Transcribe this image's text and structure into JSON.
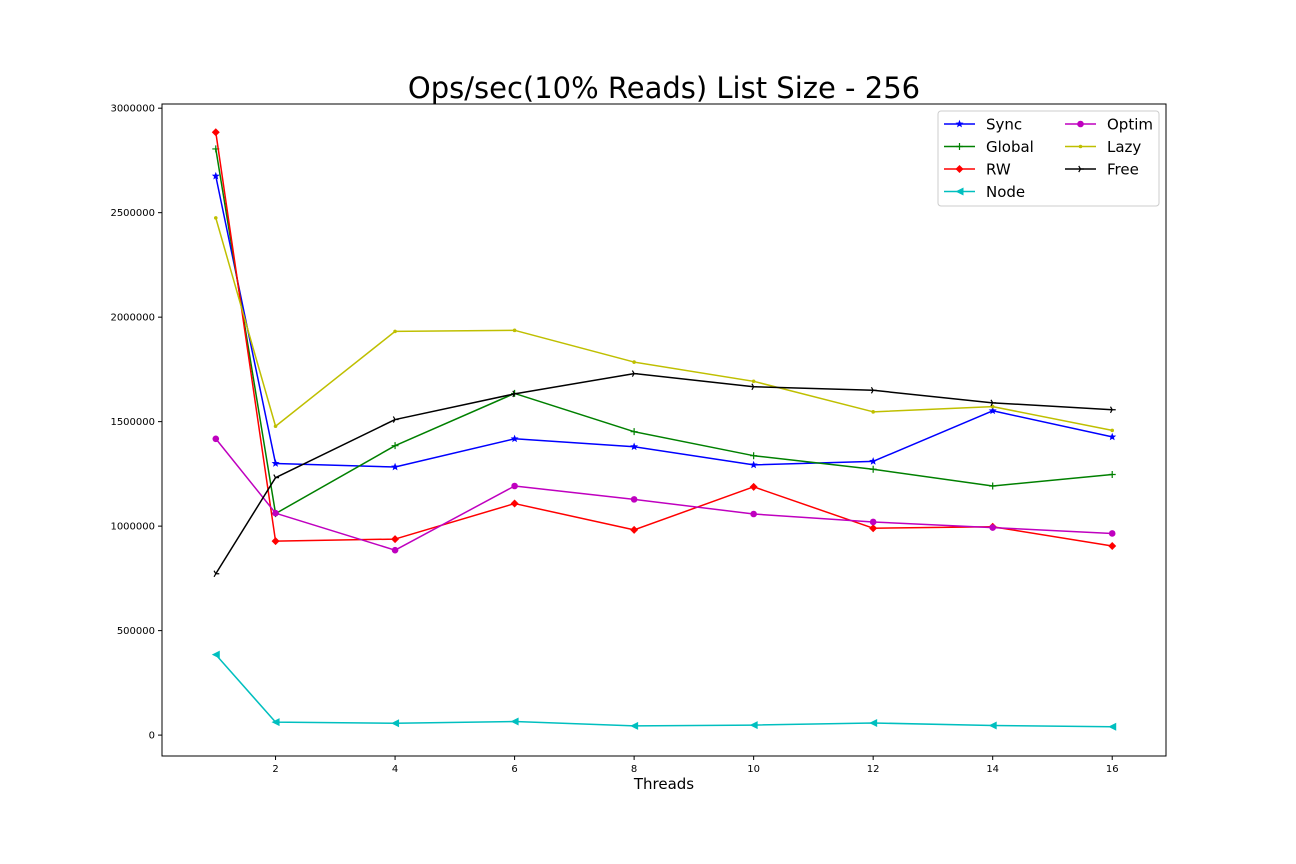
{
  "chart_data": {
    "type": "line",
    "title": "Ops/sec(10% Reads) List Size - 256",
    "xlabel": "Threads",
    "ylabel": "",
    "x": [
      1,
      2,
      4,
      6,
      8,
      10,
      12,
      14,
      16
    ],
    "xticks": [
      "2",
      "4",
      "6",
      "8",
      "10",
      "12",
      "14",
      "16"
    ],
    "xtick_values": [
      2,
      4,
      6,
      8,
      10,
      12,
      14,
      16
    ],
    "yticks": [
      "0",
      "500000",
      "1000000",
      "1500000",
      "2000000",
      "2500000",
      "3000000"
    ],
    "ytick_values": [
      0,
      500000,
      1000000,
      1500000,
      2000000,
      2500000,
      3000000
    ],
    "xlim": [
      0.1,
      16.9
    ],
    "ylim": [
      -100000,
      3020000
    ],
    "grid": false,
    "legend_placement": "top-right",
    "legend_columns": 2,
    "series": [
      {
        "name": "Sync",
        "color": "#0000ff",
        "marker": "star",
        "values": [
          2675000,
          1300000,
          1283000,
          1418000,
          1380000,
          1293000,
          1310000,
          1552000,
          1427000
        ]
      },
      {
        "name": "Global",
        "color": "#008000",
        "marker": "plus",
        "values": [
          2805000,
          1060000,
          1385000,
          1635000,
          1452000,
          1337000,
          1272000,
          1192000,
          1247000
        ]
      },
      {
        "name": "RW",
        "color": "#ff0000",
        "marker": "diamond",
        "values": [
          2885000,
          928000,
          938000,
          1108000,
          982000,
          1188000,
          990000,
          997000,
          905000
        ]
      },
      {
        "name": "Node",
        "color": "#00bfbf",
        "marker": "triangle-left",
        "values": [
          385000,
          62000,
          57000,
          65000,
          44000,
          48000,
          58000,
          46000,
          40000
        ]
      },
      {
        "name": "Optim",
        "color": "#bf00bf",
        "marker": "circle",
        "values": [
          1418000,
          1062000,
          885000,
          1192000,
          1128000,
          1058000,
          1020000,
          993000,
          965000
        ]
      },
      {
        "name": "Lazy",
        "color": "#bfbf00",
        "marker": "point",
        "values": [
          2475000,
          1478000,
          1932000,
          1937000,
          1785000,
          1693000,
          1547000,
          1572000,
          1458000
        ]
      },
      {
        "name": "Free",
        "color": "#000000",
        "marker": "tri-right",
        "values": [
          772000,
          1232000,
          1510000,
          1633000,
          1730000,
          1667000,
          1650000,
          1590000,
          1557000
        ]
      }
    ]
  }
}
